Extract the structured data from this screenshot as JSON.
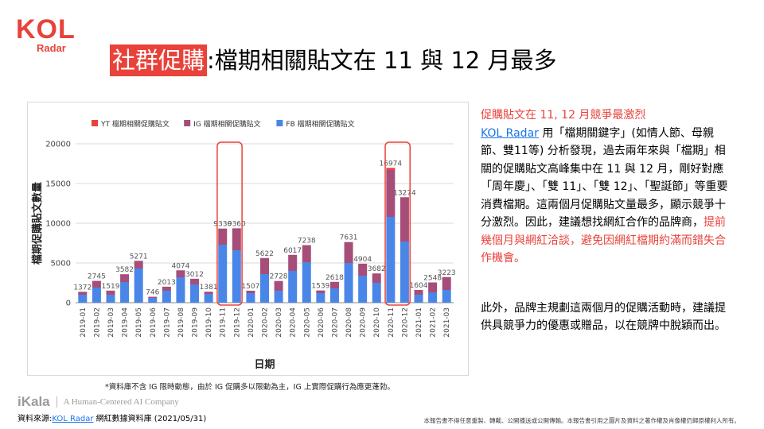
{
  "logo": {
    "main": "KOL",
    "sub": "Radar"
  },
  "title": {
    "highlight": "社群促購",
    "rest": ":檔期相關貼文在 11 與 12 月最多"
  },
  "footnote": "*資料庫不含 IG 限時動態，由於 IG 促購多以限動為主，IG 上實際促購行為應更蓬勃。",
  "side": {
    "heading": "促購貼文在 11, 12 月競爭最激烈",
    "p1_link": "KOL Radar",
    "p1_a": " 用「檔期關鍵字」(如情人節、母親節、雙11等) 分析發現，過去兩年來與「檔期」相關的促購貼文高峰集中在 11 與 12 月，剛好對應「周年慶」、「雙 11」、「雙 12」、「聖誕節」等重要消費檔期。這兩個月促購貼文量最多，顯示競爭十分激烈。因此，建議想找網紅合作的品牌商，",
    "p1_red": "提前幾個月與網紅洽談，避免因網紅檔期約滿而錯失合作機會。",
    "p2": "此外，品牌主規劃這兩個月的促購活動時，建議提供具競爭力的優惠或贈品，以在競牌中脫穎而出。"
  },
  "footer": {
    "ikala_logo": "iKala",
    "ikala_tagline": "A Human-Centered AI Company",
    "source_prefix": "資料來源:",
    "source_link": "KOL Radar",
    "source_suffix": " 網紅數據資料庫 (2021/05/31)",
    "copyright": "本報告書不得任意重製、轉載、公開播送或公開傳輸。本報告書引用之圖片及資料之著作權及肖像權仍歸原權利人所有。"
  },
  "colors": {
    "accent": "#e8423b",
    "fb": "#4a86e8",
    "ig": "#a64d79",
    "yt": "#e8423b",
    "link": "#1a73e8"
  },
  "chart_data": {
    "type": "bar",
    "stacked": true,
    "xlabel": "日期",
    "ylabel": "檔期促購貼文數量",
    "ylim": [
      0,
      20000
    ],
    "yticks": [
      0,
      5000,
      10000,
      15000,
      20000
    ],
    "legend_position": "top",
    "grid": true,
    "categories": [
      "2019-01",
      "2019-02",
      "2019-03",
      "2019-04",
      "2019-05",
      "2019-06",
      "2019-07",
      "2019-08",
      "2019-09",
      "2019-10",
      "2019-11",
      "2019-12",
      "2020-01",
      "2020-02",
      "2020-03",
      "2020-04",
      "2020-05",
      "2020-06",
      "2020-07",
      "2020-08",
      "2020-09",
      "2020-10",
      "2020-11",
      "2020-12",
      "2021-01",
      "2021-02",
      "2021-03"
    ],
    "totals": [
      1372,
      2745,
      1519,
      3582,
      5271,
      746,
      2013,
      4074,
      3012,
      1381,
      9330,
      9360,
      1507,
      5622,
      2728,
      6017,
      7238,
      1539,
      2618,
      7631,
      4904,
      3682,
      16974,
      13274,
      1604,
      2548,
      3223
    ],
    "series": [
      {
        "name": "YT 檔期相關促購貼文",
        "color": "#e8423b",
        "values": [
          0,
          0,
          0,
          0,
          0,
          0,
          0,
          0,
          0,
          0,
          0,
          0,
          0,
          0,
          0,
          0,
          0,
          0,
          0,
          0,
          0,
          0,
          270,
          0,
          0,
          0,
          0
        ]
      },
      {
        "name": "IG 檔期相關促購貼文",
        "color": "#a64d79",
        "values": [
          372,
          845,
          519,
          982,
          971,
          146,
          513,
          874,
          712,
          281,
          2030,
          2760,
          307,
          2022,
          1228,
          2017,
          2138,
          339,
          818,
          2631,
          1504,
          1182,
          5904,
          5574,
          604,
          1248,
          1623
        ]
      },
      {
        "name": "FB 檔期相關促購貼文",
        "color": "#4a86e8",
        "values": [
          1000,
          1900,
          1000,
          2600,
          4300,
          600,
          1500,
          3200,
          2300,
          1100,
          7300,
          6600,
          1200,
          3600,
          1500,
          4000,
          5100,
          1200,
          1800,
          5000,
          3400,
          2500,
          10800,
          7700,
          1000,
          1300,
          1600
        ]
      }
    ],
    "highlights": [
      [
        "2019-11",
        "2019-12"
      ],
      [
        "2020-11",
        "2020-12"
      ]
    ]
  }
}
